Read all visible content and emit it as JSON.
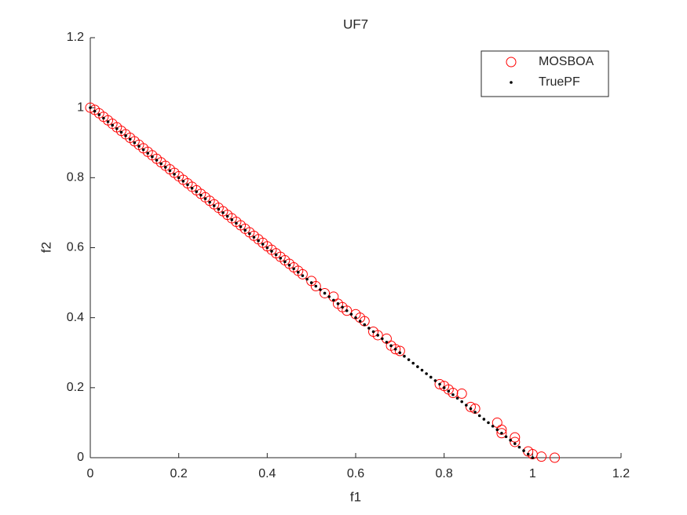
{
  "chart_data": {
    "type": "scatter",
    "title": "UF7",
    "xlabel": "f1",
    "ylabel": "f2",
    "xlim": [
      0,
      1.2
    ],
    "ylim": [
      0,
      1.2
    ],
    "xticks": [
      0,
      0.2,
      0.4,
      0.6,
      0.8,
      1,
      1.2
    ],
    "yticks": [
      0,
      0.2,
      0.4,
      0.6,
      0.8,
      1,
      1.2
    ],
    "grid": false,
    "legend": "northeast",
    "series": [
      {
        "name": "MOSBOA",
        "color": "#ff0000",
        "marker": "o",
        "x": [
          0,
          0.01,
          0.02,
          0.03,
          0.04,
          0.05,
          0.06,
          0.07,
          0.08,
          0.09,
          0.1,
          0.11,
          0.12,
          0.13,
          0.14,
          0.15,
          0.16,
          0.17,
          0.18,
          0.19,
          0.2,
          0.21,
          0.22,
          0.23,
          0.24,
          0.25,
          0.26,
          0.27,
          0.28,
          0.29,
          0.3,
          0.31,
          0.32,
          0.33,
          0.34,
          0.35,
          0.36,
          0.37,
          0.38,
          0.39,
          0.4,
          0.41,
          0.42,
          0.43,
          0.44,
          0.45,
          0.46,
          0.47,
          0.48,
          0.5,
          0.51,
          0.53,
          0.55,
          0.56,
          0.57,
          0.58,
          0.6,
          0.61,
          0.62,
          0.64,
          0.65,
          0.67,
          0.68,
          0.69,
          0.7,
          0.79,
          0.8,
          0.81,
          0.82,
          0.84,
          0.86,
          0.87,
          0.92,
          0.93,
          0.93,
          0.96,
          0.96,
          0.99,
          1.0,
          1.02,
          1.05
        ],
        "y": [
          1,
          0.994,
          0.984,
          0.974,
          0.964,
          0.954,
          0.944,
          0.934,
          0.924,
          0.914,
          0.904,
          0.894,
          0.884,
          0.874,
          0.864,
          0.854,
          0.844,
          0.834,
          0.824,
          0.814,
          0.804,
          0.794,
          0.784,
          0.774,
          0.764,
          0.754,
          0.744,
          0.734,
          0.724,
          0.714,
          0.704,
          0.694,
          0.684,
          0.674,
          0.664,
          0.654,
          0.644,
          0.634,
          0.624,
          0.614,
          0.604,
          0.594,
          0.584,
          0.574,
          0.564,
          0.554,
          0.544,
          0.534,
          0.524,
          0.505,
          0.49,
          0.47,
          0.46,
          0.44,
          0.43,
          0.42,
          0.41,
          0.4,
          0.39,
          0.36,
          0.35,
          0.34,
          0.32,
          0.31,
          0.305,
          0.21,
          0.205,
          0.195,
          0.185,
          0.183,
          0.145,
          0.14,
          0.1,
          0.08,
          0.07,
          0.058,
          0.045,
          0.018,
          0.01,
          0.003,
          0
        ]
      },
      {
        "name": "TruePF",
        "color": "#000000",
        "marker": ".",
        "x": [
          0,
          0.01,
          0.02,
          0.03,
          0.04,
          0.05,
          0.06,
          0.07,
          0.08,
          0.09,
          0.1,
          0.11,
          0.12,
          0.13,
          0.14,
          0.15,
          0.16,
          0.17,
          0.18,
          0.19,
          0.2,
          0.21,
          0.22,
          0.23,
          0.24,
          0.25,
          0.26,
          0.27,
          0.28,
          0.29,
          0.3,
          0.31,
          0.32,
          0.33,
          0.34,
          0.35,
          0.36,
          0.37,
          0.38,
          0.39,
          0.4,
          0.41,
          0.42,
          0.43,
          0.44,
          0.45,
          0.46,
          0.47,
          0.48,
          0.49,
          0.5,
          0.51,
          0.52,
          0.53,
          0.54,
          0.55,
          0.56,
          0.57,
          0.58,
          0.59,
          0.6,
          0.61,
          0.62,
          0.63,
          0.64,
          0.65,
          0.66,
          0.67,
          0.68,
          0.69,
          0.7,
          0.71,
          0.72,
          0.73,
          0.74,
          0.75,
          0.76,
          0.77,
          0.78,
          0.79,
          0.8,
          0.81,
          0.82,
          0.83,
          0.84,
          0.85,
          0.86,
          0.87,
          0.88,
          0.89,
          0.9,
          0.91,
          0.92,
          0.93,
          0.94,
          0.95,
          0.96,
          0.97,
          0.98,
          0.99,
          1
        ],
        "y": [
          1,
          0.99,
          0.98,
          0.97,
          0.96,
          0.95,
          0.94,
          0.93,
          0.92,
          0.91,
          0.9,
          0.89,
          0.88,
          0.87,
          0.86,
          0.85,
          0.84,
          0.83,
          0.82,
          0.81,
          0.8,
          0.79,
          0.78,
          0.77,
          0.76,
          0.75,
          0.74,
          0.73,
          0.72,
          0.71,
          0.7,
          0.69,
          0.68,
          0.67,
          0.66,
          0.65,
          0.64,
          0.63,
          0.62,
          0.61,
          0.6,
          0.59,
          0.58,
          0.57,
          0.56,
          0.55,
          0.54,
          0.53,
          0.52,
          0.51,
          0.5,
          0.49,
          0.48,
          0.47,
          0.46,
          0.45,
          0.44,
          0.43,
          0.42,
          0.41,
          0.4,
          0.39,
          0.38,
          0.37,
          0.36,
          0.35,
          0.34,
          0.33,
          0.32,
          0.31,
          0.3,
          0.29,
          0.28,
          0.27,
          0.26,
          0.25,
          0.24,
          0.23,
          0.22,
          0.21,
          0.2,
          0.19,
          0.18,
          0.17,
          0.16,
          0.15,
          0.14,
          0.13,
          0.12,
          0.11,
          0.1,
          0.09,
          0.08,
          0.07,
          0.06,
          0.05,
          0.04,
          0.03,
          0.02,
          0.01,
          0
        ]
      }
    ]
  }
}
